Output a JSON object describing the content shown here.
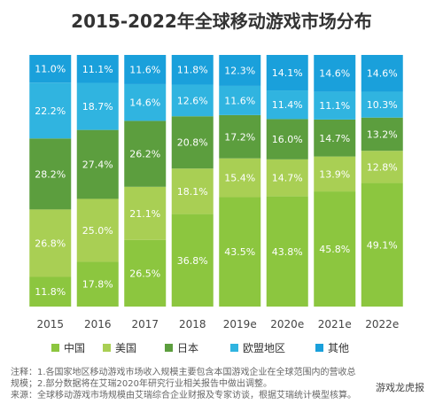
{
  "title": "2015-2022年全球移动游戏市场分布",
  "chart_data": {
    "type": "bar",
    "stacked": true,
    "categories": [
      "2015",
      "2016",
      "2017",
      "2018",
      "2019e",
      "2020e",
      "2021e",
      "2022e"
    ],
    "series": [
      {
        "name": "中国",
        "color": "#8cc63f",
        "values": [
          11.8,
          17.8,
          26.5,
          36.8,
          43.5,
          43.8,
          45.8,
          49.1
        ]
      },
      {
        "name": "美国",
        "color": "#a9cf54",
        "values": [
          26.8,
          25.0,
          21.1,
          18.1,
          15.4,
          14.7,
          13.9,
          12.8
        ]
      },
      {
        "name": "日本",
        "color": "#5c9e3e",
        "values": [
          28.2,
          27.4,
          26.2,
          20.8,
          17.2,
          16.0,
          14.7,
          13.2
        ]
      },
      {
        "name": "欧盟地区",
        "color": "#30b4e0",
        "values": [
          22.2,
          18.7,
          14.6,
          12.6,
          11.6,
          11.4,
          11.1,
          10.3
        ]
      },
      {
        "name": "其他",
        "color": "#1aa0db",
        "values": [
          11.0,
          11.1,
          11.6,
          11.8,
          12.3,
          14.1,
          14.6,
          14.6
        ]
      }
    ],
    "value_suffix": "%",
    "ylim": [
      0,
      100
    ],
    "legend_position": "bottom"
  },
  "notes": [
    "注释：1.各国家地区移动游戏市场收入规模主要包含本国游戏企业在全球范围内的营收总",
    "规模；2.部分数据将在艾瑞2020年研究行业相关报告中做出调整。",
    "来源：全球移动游戏市场规模由艾瑞综合企业财报及专家访谈，根据艾瑞统计模型核算。"
  ],
  "watermark": "游戏龙虎报"
}
